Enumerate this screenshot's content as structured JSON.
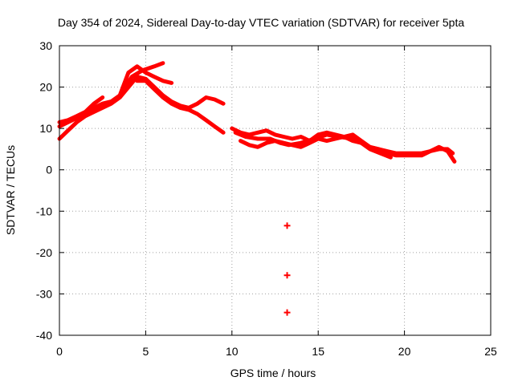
{
  "chart_data": {
    "type": "scatter",
    "title": "Day 354 of 2024, Sidereal Day-to-day VTEC variation (SDTVAR) for receiver 5pta",
    "xlabel": "GPS time / hours",
    "ylabel": "SDTVAR / TECUs",
    "xlim": [
      0,
      25
    ],
    "ylim": [
      -40,
      30
    ],
    "xticks": [
      0,
      5,
      10,
      15,
      20,
      25
    ],
    "yticks": [
      -40,
      -30,
      -20,
      -10,
      0,
      10,
      20,
      30
    ],
    "xtick_labels": [
      "0",
      "5",
      "10",
      "15",
      "20",
      "25"
    ],
    "ytick_labels": [
      "-40",
      "-30",
      "-20",
      "-10",
      "0",
      "10",
      "20",
      "30"
    ],
    "grid": true,
    "color": "#ff0000",
    "series": [
      {
        "name": "track-1",
        "points": [
          [
            0.0,
            7.5
          ],
          [
            0.5,
            9.5
          ],
          [
            1.0,
            11.5
          ],
          [
            1.5,
            13.0
          ],
          [
            2.0,
            14.0
          ],
          [
            2.5,
            15.0
          ],
          [
            3.0,
            16.0
          ],
          [
            3.5,
            17.5
          ],
          [
            4.0,
            20.0
          ],
          [
            4.5,
            22.5
          ],
          [
            5.0,
            22.0
          ],
          [
            5.5,
            20.0
          ],
          [
            6.0,
            18.0
          ],
          [
            6.5,
            16.5
          ],
          [
            7.0,
            15.5
          ],
          [
            7.5,
            15.0
          ],
          [
            8.0,
            16.0
          ],
          [
            8.5,
            17.5
          ],
          [
            9.0,
            17.0
          ],
          [
            9.5,
            16.0
          ]
        ]
      },
      {
        "name": "track-2",
        "points": [
          [
            0.0,
            10.5
          ],
          [
            0.5,
            11.5
          ],
          [
            1.0,
            12.5
          ],
          [
            1.5,
            13.5
          ],
          [
            2.0,
            15.0
          ],
          [
            2.5,
            16.0
          ],
          [
            3.0,
            16.5
          ],
          [
            3.5,
            18.0
          ],
          [
            4.0,
            23.5
          ],
          [
            4.5,
            25.0
          ],
          [
            5.0,
            23.5
          ],
          [
            5.5,
            22.5
          ],
          [
            6.0,
            21.5
          ],
          [
            6.5,
            21.0
          ]
        ]
      },
      {
        "name": "track-3",
        "points": [
          [
            0.0,
            11.5
          ],
          [
            0.5,
            12.0
          ],
          [
            1.0,
            13.0
          ],
          [
            1.5,
            14.0
          ],
          [
            2.0,
            16.0
          ],
          [
            2.5,
            17.5
          ]
        ]
      },
      {
        "name": "track-4",
        "points": [
          [
            3.8,
            20.0
          ],
          [
            4.2,
            22.5
          ],
          [
            4.8,
            24.0
          ],
          [
            5.5,
            25.0
          ],
          [
            6.0,
            25.8
          ]
        ]
      },
      {
        "name": "track-5",
        "points": [
          [
            4.5,
            21.5
          ],
          [
            5.0,
            21.5
          ],
          [
            5.5,
            19.5
          ],
          [
            6.0,
            17.5
          ],
          [
            6.5,
            16.0
          ],
          [
            7.0,
            15.0
          ],
          [
            7.5,
            14.5
          ],
          [
            8.0,
            13.5
          ],
          [
            8.5,
            12.0
          ],
          [
            9.0,
            10.5
          ],
          [
            9.5,
            9.0
          ]
        ]
      },
      {
        "name": "track-6",
        "points": [
          [
            10.0,
            10.0
          ],
          [
            10.5,
            9.0
          ],
          [
            11.0,
            8.5
          ],
          [
            11.5,
            9.0
          ],
          [
            12.0,
            9.5
          ],
          [
            12.5,
            8.5
          ],
          [
            13.0,
            8.0
          ],
          [
            13.5,
            7.5
          ],
          [
            14.0,
            8.0
          ],
          [
            14.5,
            7.0
          ],
          [
            15.0,
            8.5
          ],
          [
            15.5,
            9.0
          ],
          [
            16.0,
            8.5
          ],
          [
            16.5,
            8.0
          ],
          [
            17.0,
            8.5
          ],
          [
            17.5,
            7.0
          ],
          [
            18.0,
            5.5
          ],
          [
            18.5,
            5.0
          ],
          [
            19.0,
            4.5
          ],
          [
            19.5,
            4.0
          ],
          [
            20.0,
            4.0
          ],
          [
            20.5,
            4.0
          ],
          [
            21.0,
            4.0
          ],
          [
            21.5,
            4.5
          ],
          [
            22.0,
            5.0
          ],
          [
            22.5,
            5.0
          ],
          [
            22.8,
            4.0
          ]
        ]
      },
      {
        "name": "track-7",
        "points": [
          [
            10.5,
            7.0
          ],
          [
            11.0,
            6.0
          ],
          [
            11.5,
            5.5
          ],
          [
            12.0,
            6.5
          ],
          [
            12.5,
            7.0
          ],
          [
            13.0,
            6.5
          ],
          [
            13.5,
            6.0
          ],
          [
            14.0,
            5.5
          ],
          [
            14.5,
            6.5
          ],
          [
            15.0,
            7.5
          ],
          [
            15.5,
            7.0
          ],
          [
            16.0,
            7.5
          ],
          [
            16.5,
            8.0
          ],
          [
            17.0,
            7.0
          ],
          [
            17.5,
            6.5
          ],
          [
            18.0,
            5.5
          ],
          [
            18.5,
            5.0
          ],
          [
            19.0,
            4.0
          ],
          [
            19.5,
            3.5
          ],
          [
            20.0,
            3.5
          ],
          [
            20.5,
            3.5
          ],
          [
            21.0,
            3.5
          ],
          [
            21.5,
            4.5
          ],
          [
            22.0,
            5.5
          ],
          [
            22.5,
            4.5
          ],
          [
            22.9,
            2.0
          ]
        ]
      },
      {
        "name": "track-8",
        "points": [
          [
            10.2,
            9.0
          ],
          [
            10.8,
            8.0
          ],
          [
            11.5,
            7.5
          ],
          [
            12.2,
            7.5
          ],
          [
            12.8,
            6.5
          ],
          [
            13.3,
            6.0
          ],
          [
            14.0,
            6.5
          ],
          [
            14.8,
            7.5
          ],
          [
            15.5,
            8.5
          ],
          [
            16.2,
            8.0
          ],
          [
            17.0,
            7.5
          ],
          [
            17.5,
            6.5
          ],
          [
            18.0,
            5.0
          ],
          [
            18.6,
            4.0
          ],
          [
            19.2,
            3.0
          ]
        ]
      },
      {
        "name": "outliers",
        "points": [
          [
            13.2,
            -13.5
          ],
          [
            13.2,
            -25.5
          ],
          [
            13.2,
            -34.5
          ]
        ],
        "style": "points"
      }
    ]
  }
}
